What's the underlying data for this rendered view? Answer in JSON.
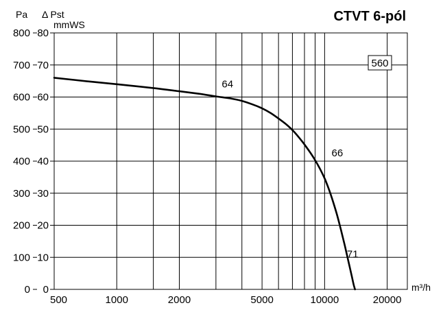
{
  "chart_data": {
    "type": "line",
    "title": "CTVT 6-pól",
    "xlabel": "m³/h",
    "ylabel_left": "Pa",
    "ylabel_right_line1": "Δ Pst",
    "ylabel_right_line2": "mmWS",
    "model_badge": "560",
    "x_scale": "log",
    "xlim": [
      500,
      25000
    ],
    "ylim": [
      0,
      800
    ],
    "y2lim": [
      0,
      80
    ],
    "x_ticks": [
      500,
      1000,
      2000,
      5000,
      10000,
      20000
    ],
    "x_tick_labels": [
      "500",
      "1000",
      "2000",
      "5000",
      "10000",
      "20000"
    ],
    "x_gridlines": [
      1000,
      1500,
      2000,
      3000,
      4000,
      5000,
      6000,
      7000,
      8000,
      9000,
      10000,
      20000
    ],
    "y_ticks": [
      0,
      100,
      200,
      300,
      400,
      500,
      600,
      700,
      800
    ],
    "y_tick_labels": [
      "0",
      "100",
      "200",
      "300",
      "400",
      "500",
      "600",
      "700",
      "800"
    ],
    "y2_ticks": [
      0,
      10,
      20,
      30,
      40,
      50,
      60,
      70,
      80
    ],
    "y2_tick_labels": [
      "0",
      "10",
      "20",
      "30",
      "40",
      "50",
      "60",
      "70",
      "80"
    ],
    "grid": true,
    "series": [
      {
        "x": [
          500,
          750,
          1000,
          1500,
          2000,
          2500,
          3000,
          3500,
          4000,
          4500,
          5000,
          5500,
          6000,
          6500,
          7000,
          7500,
          8000,
          8500,
          9000,
          9500,
          10000,
          10500,
          11000,
          11500,
          12000,
          12500,
          13000,
          13500,
          13800,
          14000
        ],
        "y": [
          660,
          648,
          640,
          628,
          618,
          610,
          602,
          596,
          588,
          577,
          565,
          550,
          533,
          516,
          497,
          475,
          452,
          428,
          403,
          376,
          346,
          311,
          272,
          230,
          184,
          137,
          89,
          42,
          14,
          0
        ]
      }
    ],
    "annotations": [
      {
        "text": "64",
        "x": 3200,
        "y": 630
      },
      {
        "text": "66",
        "x": 10800,
        "y": 415
      },
      {
        "text": "71",
        "x": 12800,
        "y": 100
      }
    ]
  }
}
